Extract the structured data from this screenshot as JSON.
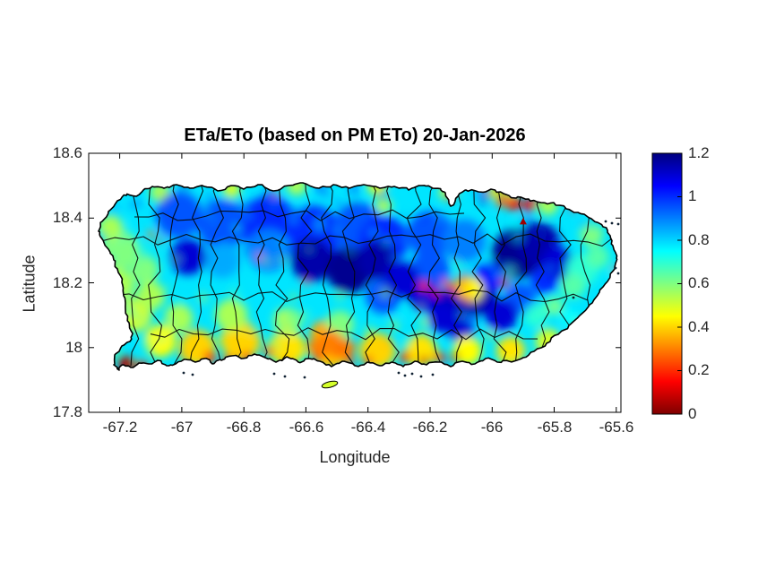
{
  "figure": {
    "title": "ETa/ETo (based on PM ETo) 20-Jan-2026",
    "xlabel": "Longitude",
    "ylabel": "Latitude"
  },
  "axes": {
    "x_ticks": [
      "-67.2",
      "-67",
      "-66.8",
      "-66.6",
      "-66.4",
      "-66.2",
      "-66",
      "-65.8",
      "-65.6"
    ],
    "x_tick_values": [
      -67.2,
      -67.0,
      -66.8,
      -66.6,
      -66.4,
      -66.2,
      -66.0,
      -65.8,
      -65.6
    ],
    "y_ticks": [
      "18.6",
      "18.4",
      "18.2",
      "18",
      "17.8"
    ],
    "y_tick_values": [
      18.6,
      18.4,
      18.2,
      18.0,
      17.8
    ],
    "x_range": [
      -67.3,
      -65.585
    ],
    "y_range": [
      17.8,
      18.6
    ]
  },
  "colorbar": {
    "ticks": [
      "1.2",
      "1",
      "0.8",
      "0.6",
      "0.4",
      "0.2",
      "0"
    ],
    "tick_values": [
      1.2,
      1.0,
      0.8,
      0.6,
      0.4,
      0.2,
      0
    ],
    "min": 0,
    "max": 1.2,
    "colormap": "jet (reversed: low=dark red, high=dark blue)",
    "stops": [
      {
        "v": 0.0,
        "color": "#7F0000"
      },
      {
        "v": 0.15,
        "color": "#FF0000"
      },
      {
        "v": 0.45,
        "color": "#FFFF00"
      },
      {
        "v": 0.6,
        "color": "#80FF80"
      },
      {
        "v": 0.75,
        "color": "#00FFFF"
      },
      {
        "v": 1.05,
        "color": "#0000FF"
      },
      {
        "v": 1.2,
        "color": "#00007F"
      }
    ]
  },
  "chart_data": {
    "type": "heatmap",
    "title": "ETa/ETo (based on PM ETo) 20-Jan-2026",
    "xlabel": "Longitude",
    "ylabel": "Latitude",
    "region": "Puerto Rico (municipality boundaries overlaid in black)",
    "value_label": "ETa/ETo",
    "value_range": [
      0,
      1.2
    ],
    "x_range": [
      -67.3,
      -65.585
    ],
    "y_range": [
      17.8,
      18.6
    ],
    "legend_position": "right colorbar",
    "grid": false,
    "regions_summary": [
      "North-central karst belt and central cordillera: ETa/ETo ~0.9-1.2 (blue to dark navy)",
      "Large dark-navy maxima (~1.1-1.2) over central mountains (-66.5,18.2) and eastern sierra/El Yunque (-65.9,18.3)",
      "South coastal plain: ~0.2-0.5 (yellow-orange-red), darkest red at the southwest tip near Cabo Rojo",
      "West coast and east tip: ~0.5-0.8 (green to cyan)",
      "Scattered low-value red speckles along north coast near Loiza and through interior valleys (Caguas ~0.4)"
    ],
    "field_points_columns": [
      "lon",
      "lat",
      "value",
      "radius_px"
    ],
    "field_points": [
      [
        -67.01,
        18.41,
        0.95,
        26
      ],
      [
        -66.87,
        18.38,
        0.95,
        28
      ],
      [
        -66.72,
        18.38,
        1.0,
        32
      ],
      [
        -66.58,
        18.35,
        1.0,
        32
      ],
      [
        -66.43,
        18.37,
        0.95,
        28
      ],
      [
        -66.35,
        18.33,
        1.0,
        28
      ],
      [
        -66.2,
        18.35,
        0.95,
        26
      ],
      [
        -66.09,
        18.33,
        0.9,
        24
      ],
      [
        -66.72,
        18.3,
        0.9,
        24
      ],
      [
        -66.87,
        18.27,
        0.85,
        20
      ],
      [
        -66.2,
        18.24,
        0.95,
        22
      ],
      [
        -66.35,
        18.16,
        0.95,
        20
      ],
      [
        -66.09,
        18.1,
        0.9,
        16
      ],
      [
        -65.91,
        18.15,
        0.95,
        18
      ],
      [
        -65.83,
        18.21,
        1.0,
        16
      ],
      [
        -66.98,
        18.28,
        1.1,
        20
      ],
      [
        -66.58,
        18.27,
        1.15,
        24
      ],
      [
        -66.46,
        18.24,
        1.18,
        26
      ],
      [
        -66.37,
        18.27,
        1.15,
        22
      ],
      [
        -66.29,
        18.21,
        1.1,
        20
      ],
      [
        -66.22,
        18.16,
        1.1,
        18
      ],
      [
        -66.13,
        18.13,
        1.12,
        20
      ],
      [
        -66.05,
        18.16,
        1.15,
        22
      ],
      [
        -65.97,
        18.1,
        1.1,
        18
      ],
      [
        -65.92,
        18.29,
        1.18,
        28
      ],
      [
        -65.85,
        18.32,
        1.15,
        24
      ],
      [
        -65.79,
        18.26,
        1.1,
        18
      ],
      [
        -66.01,
        18.22,
        1.05,
        16
      ],
      [
        -66.16,
        18.09,
        1.1,
        16
      ],
      [
        -66.1,
        18.05,
        1.1,
        14
      ],
      [
        -67.2,
        18.3,
        0.6,
        22
      ],
      [
        -67.21,
        18.19,
        0.55,
        20
      ],
      [
        -67.15,
        18.1,
        0.5,
        18
      ],
      [
        -67.12,
        18.24,
        0.6,
        16
      ],
      [
        -67.23,
        18.37,
        0.55,
        14
      ],
      [
        -67.1,
        18.16,
        0.55,
        16
      ],
      [
        -67.07,
        18.48,
        0.55,
        11
      ],
      [
        -66.84,
        18.49,
        0.5,
        10
      ],
      [
        -66.63,
        18.5,
        0.55,
        11
      ],
      [
        -66.37,
        18.5,
        0.5,
        11
      ],
      [
        -66.14,
        18.48,
        0.5,
        10
      ],
      [
        -65.97,
        18.48,
        0.5,
        12
      ],
      [
        -65.82,
        18.44,
        0.55,
        11
      ],
      [
        -66.35,
        18.44,
        0.55,
        9
      ],
      [
        -67.07,
        18.02,
        0.45,
        18
      ],
      [
        -66.95,
        18.0,
        0.4,
        20
      ],
      [
        -66.81,
        18.02,
        0.4,
        22
      ],
      [
        -66.66,
        18.0,
        0.42,
        20
      ],
      [
        -66.52,
        17.99,
        0.38,
        20
      ],
      [
        -66.37,
        17.99,
        0.4,
        20
      ],
      [
        -66.23,
        17.99,
        0.42,
        18
      ],
      [
        -66.08,
        17.99,
        0.45,
        16
      ],
      [
        -65.94,
        17.99,
        0.42,
        16
      ],
      [
        -65.82,
        18.02,
        0.5,
        14
      ],
      [
        -66.54,
        18.04,
        0.35,
        16
      ],
      [
        -67.01,
        18.09,
        0.55,
        16
      ],
      [
        -66.84,
        18.1,
        0.55,
        18
      ],
      [
        -66.66,
        18.08,
        0.6,
        16
      ],
      [
        -66.49,
        18.07,
        0.6,
        16
      ],
      [
        -66.07,
        18.18,
        0.45,
        14
      ],
      [
        -66.09,
        18.2,
        0.4,
        9
      ],
      [
        -66.13,
        18.19,
        0.25,
        5
      ],
      [
        -66.11,
        18.17,
        0.15,
        4
      ],
      [
        -66.1,
        18.21,
        0.25,
        4
      ],
      [
        -66.08,
        18.155,
        0.2,
        4
      ],
      [
        -65.93,
        18.445,
        0.15,
        8
      ],
      [
        -65.88,
        18.44,
        0.15,
        7
      ],
      [
        -65.97,
        18.45,
        0.25,
        6
      ],
      [
        -67.18,
        17.95,
        0.05,
        9
      ],
      [
        -67.13,
        17.94,
        0.12,
        7
      ],
      [
        -66.91,
        17.97,
        0.2,
        7
      ],
      [
        -66.85,
        17.96,
        0.15,
        6
      ],
      [
        -66.79,
        17.97,
        0.2,
        6
      ],
      [
        -66.72,
        17.99,
        0.25,
        6
      ],
      [
        -66.56,
        17.975,
        0.2,
        6
      ],
      [
        -66.5,
        17.99,
        0.25,
        8
      ],
      [
        -66.52,
        18.015,
        0.3,
        14
      ],
      [
        -66.47,
        18.0,
        0.28,
        10
      ],
      [
        -66.57,
        18.0,
        0.3,
        9
      ],
      [
        -66.46,
        17.96,
        0.2,
        5
      ],
      [
        -66.4,
        17.96,
        0.15,
        5
      ],
      [
        -66.28,
        17.97,
        0.15,
        6
      ],
      [
        -66.22,
        17.96,
        0.1,
        5
      ],
      [
        -66.17,
        17.97,
        0.15,
        6
      ],
      [
        -66.12,
        17.97,
        0.12,
        5
      ],
      [
        -66.22,
        18.19,
        0.2,
        5
      ],
      [
        -66.18,
        18.17,
        0.15,
        4
      ],
      [
        -66.15,
        18.2,
        0.25,
        4
      ],
      [
        -65.96,
        18.2,
        0.1,
        5
      ],
      [
        -66.01,
        18.48,
        0.2,
        4
      ],
      [
        -65.86,
        18.46,
        0.18,
        4
      ],
      [
        -65.74,
        18.43,
        0.2,
        4
      ],
      [
        -65.6,
        18.24,
        0.15,
        4
      ],
      [
        -66.7,
        18.475,
        0.3,
        3
      ],
      [
        -66.36,
        18.48,
        0.3,
        3
      ],
      [
        -67.1,
        18.35,
        0.3,
        4
      ],
      [
        -67.07,
        18.33,
        0.25,
        3
      ],
      [
        -66.75,
        18.28,
        0.3,
        3
      ],
      [
        -66.6,
        18.2,
        0.3,
        3
      ],
      [
        -65.71,
        18.24,
        0.7,
        18
      ],
      [
        -65.66,
        18.28,
        0.65,
        13
      ],
      [
        -65.68,
        18.35,
        0.6,
        13
      ],
      [
        -65.74,
        18.19,
        0.65,
        14
      ],
      [
        -65.75,
        18.09,
        0.75,
        10
      ],
      [
        -65.86,
        18.1,
        0.7,
        13
      ],
      [
        -65.8,
        18.13,
        0.65,
        11
      ]
    ],
    "marker": {
      "lon": -65.9,
      "lat": 18.39,
      "shape": "triangle",
      "color": "#A00000"
    }
  }
}
